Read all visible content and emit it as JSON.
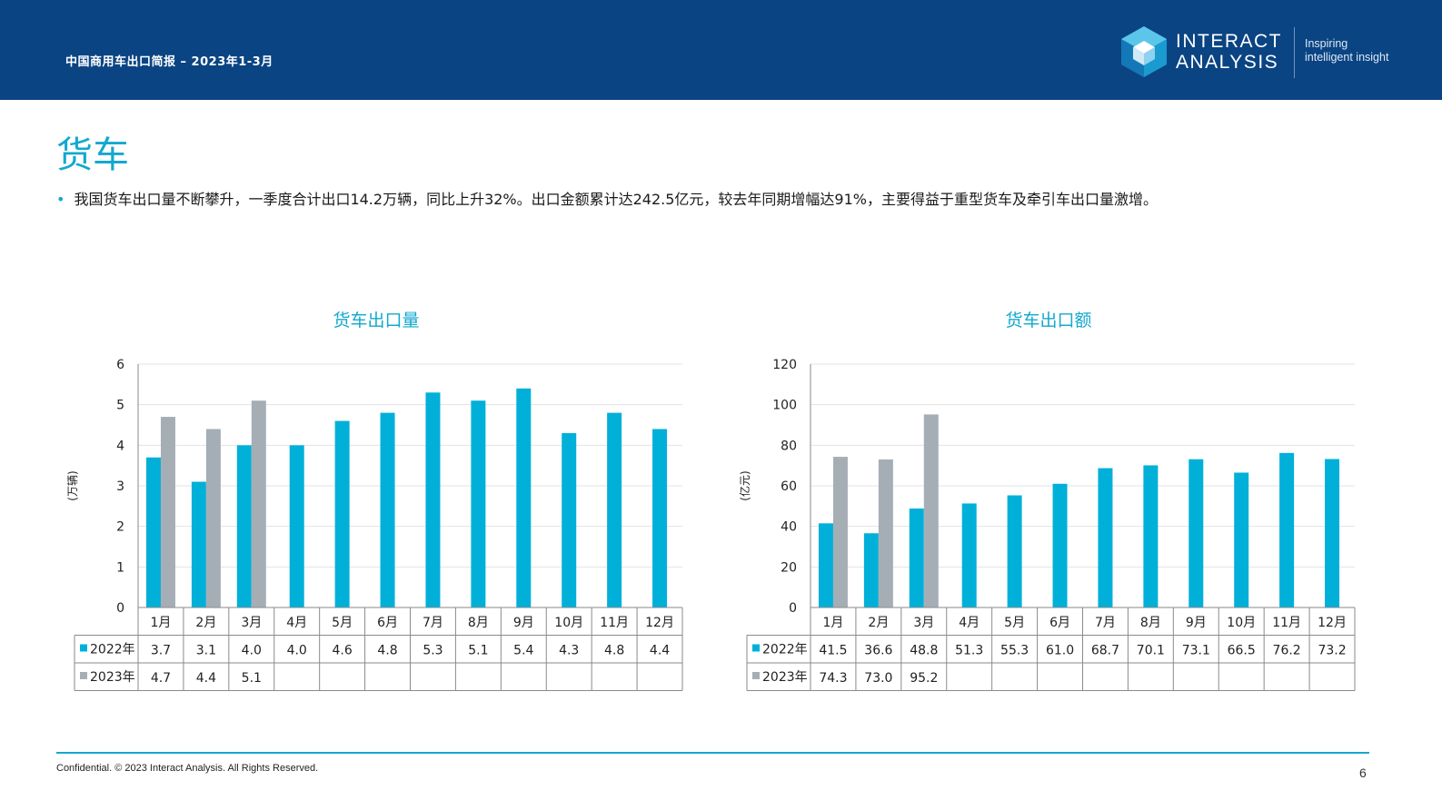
{
  "header": {
    "title": "中国商用车出口简报 – 2023年1-3月",
    "logo_line1": "INTERACT",
    "logo_line2": "ANALYSIS",
    "tagline_line1": "Inspiring",
    "tagline_line2": "intelligent insight"
  },
  "page": {
    "heading": "货车",
    "bullet": "我国货车出口量不断攀升，一季度合计出口14.2万辆，同比上升32%。出口金额累计达242.5亿元，较去年同期增幅达91%，主要得益于重型货车及牵引车出口量激增。"
  },
  "colors": {
    "brand_navy": "#0a4483",
    "accent_cyan": "#13a8cf",
    "series_2022": "#00b0d8",
    "series_2023": "#a6aeb5"
  },
  "chart_data": [
    {
      "type": "bar",
      "title": "货车出口量",
      "ylabel": "(万辆)",
      "ylim": [
        0,
        6
      ],
      "yticks": [
        0,
        1,
        2,
        3,
        4,
        5,
        6
      ],
      "grid": true,
      "legend": "data-table",
      "categories": [
        "1月",
        "2月",
        "3月",
        "4月",
        "5月",
        "6月",
        "7月",
        "8月",
        "9月",
        "10月",
        "11月",
        "12月"
      ],
      "series": [
        {
          "name": "2022年",
          "color": "#00b0d8",
          "values": [
            3.7,
            3.1,
            4.0,
            4.0,
            4.6,
            4.8,
            5.3,
            5.1,
            5.4,
            4.3,
            4.8,
            4.4
          ]
        },
        {
          "name": "2023年",
          "color": "#a6aeb5",
          "values": [
            4.7,
            4.4,
            5.1,
            null,
            null,
            null,
            null,
            null,
            null,
            null,
            null,
            null
          ]
        }
      ]
    },
    {
      "type": "bar",
      "title": "货车出口额",
      "ylabel": "(亿元)",
      "ylim": [
        0,
        120
      ],
      "yticks": [
        0,
        20,
        40,
        60,
        80,
        100,
        120
      ],
      "grid": true,
      "legend": "data-table",
      "categories": [
        "1月",
        "2月",
        "3月",
        "4月",
        "5月",
        "6月",
        "7月",
        "8月",
        "9月",
        "10月",
        "11月",
        "12月"
      ],
      "series": [
        {
          "name": "2022年",
          "color": "#00b0d8",
          "values": [
            41.5,
            36.6,
            48.8,
            51.3,
            55.3,
            61.0,
            68.7,
            70.1,
            73.1,
            66.5,
            76.2,
            73.2
          ]
        },
        {
          "name": "2023年",
          "color": "#a6aeb5",
          "values": [
            74.3,
            73.0,
            95.2,
            null,
            null,
            null,
            null,
            null,
            null,
            null,
            null,
            null
          ]
        }
      ]
    }
  ],
  "footer": {
    "confidential": "Confidential. © 2023 Interact Analysis. All Rights Reserved.",
    "page_number": "6"
  }
}
